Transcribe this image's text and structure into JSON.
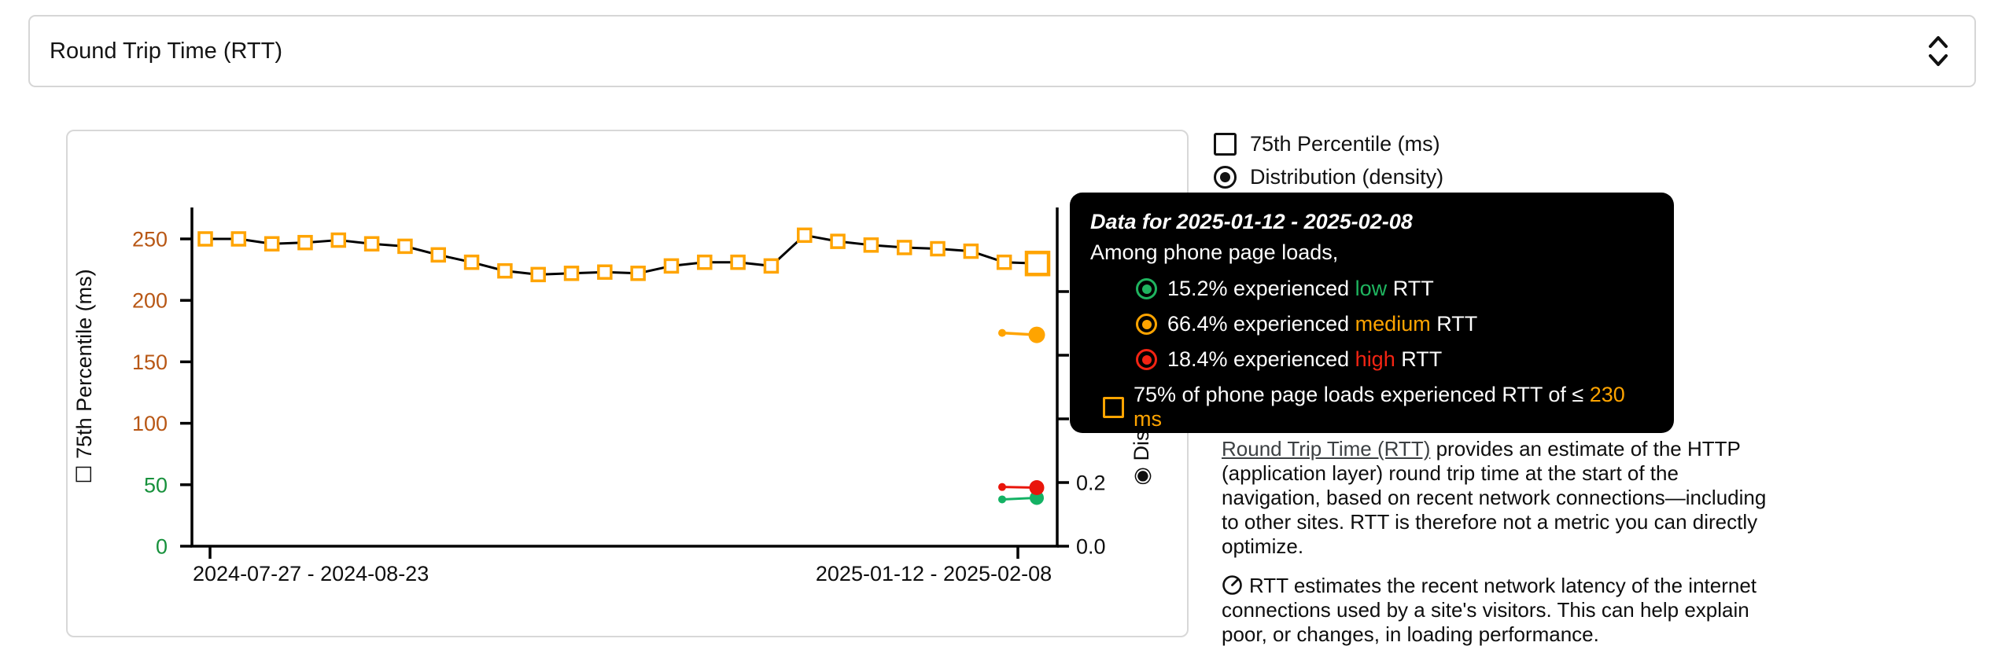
{
  "metric_selector": {
    "value": "Round Trip Time (RTT)",
    "icon": "unfold-more-icon"
  },
  "legend": {
    "percentile": {
      "label": "75th Percentile (ms)",
      "checked": false
    },
    "distribution": {
      "label": "Distribution (density)",
      "selected": true
    }
  },
  "chart_data": {
    "type": "line",
    "series": [
      {
        "name": "75th Percentile (ms)",
        "marker": "hollow-square",
        "marker_color": "#ffa400",
        "line_color": "#000000",
        "values": [
          250,
          250,
          246,
          247,
          249,
          246,
          244,
          237,
          231,
          224,
          221,
          222,
          223,
          222,
          228,
          231,
          231,
          228,
          253,
          248,
          245,
          243,
          242,
          240,
          231,
          230
        ]
      }
    ],
    "highlighted_point": {
      "index": 25,
      "value": 230,
      "period": "2025-01-12 - 2025-02-08"
    },
    "density_points": [
      {
        "name": "medium",
        "color": "#ffa400",
        "prev": 0.67,
        "current": 0.664
      },
      {
        "name": "low",
        "color": "#14b264",
        "prev": 0.147,
        "current": 0.152
      },
      {
        "name": "high",
        "color": "#e9150b",
        "prev": 0.186,
        "current": 0.184
      }
    ],
    "x_axis": {
      "tick_labels": [
        "2024-07-27 - 2024-08-23",
        "2025-01-12 - 2025-02-08"
      ]
    },
    "y_axis_left": {
      "title": "☐ 75th Percentile (ms)",
      "ticks": [
        0,
        50,
        100,
        150,
        200,
        250
      ],
      "low_tick_color": "#17913c",
      "mid_tick_color": "#b85715",
      "range": [
        0,
        275
      ]
    },
    "y_axis_right": {
      "title": "◉ Distribution (density)",
      "ticks": [
        0.0,
        0.2,
        0.4,
        0.6,
        0.8
      ],
      "labeled_ticks": [
        "0.0",
        "0.2"
      ],
      "range": [
        0,
        1
      ]
    }
  },
  "tooltip": {
    "title": "Data for 2025-01-12 - 2025-02-08",
    "subtitle": "Among phone page loads,",
    "rows": [
      {
        "before": "15.2% experienced ",
        "highlight": "low",
        "after": " RTT",
        "color": "#1fb45f"
      },
      {
        "before": "66.4% experienced ",
        "highlight": "medium",
        "after": " RTT",
        "color": "#ffa400"
      },
      {
        "before": "18.4% experienced ",
        "highlight": "high",
        "after": " RTT",
        "color": "#f32413"
      }
    ],
    "threshold_row": {
      "before": "75% of phone page loads experienced RTT of ≤ ",
      "highlight": "230 ms",
      "after": "",
      "color": "#ffa400"
    }
  },
  "description": {
    "link_text": "Round Trip Time (RTT)",
    "p1_rest": " provides an estimate of the HTTP (application layer) round trip time at the start of the navigation, based on recent network connections—including to other sites. RTT is therefore not a metric you can directly optimize.",
    "p2": "RTT estimates the recent network latency of the internet connections used by a site's visitors. This can help explain poor, or changes, in loading performance."
  }
}
